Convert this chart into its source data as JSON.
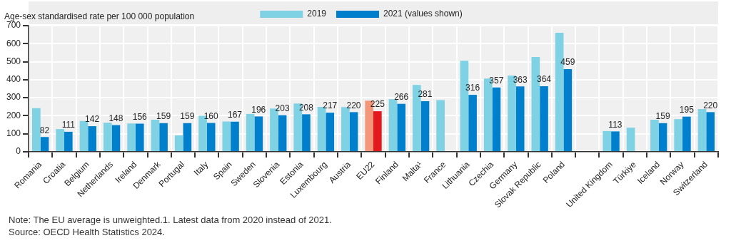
{
  "chart_data": {
    "type": "bar",
    "ylabel": "Age-sex standardised rate per 100 000 population",
    "categories": [
      "Romania",
      "Croatia",
      "Belgium",
      "Netherlands",
      "Ireland",
      "Denmark",
      "Portugal",
      "Italy",
      "Spain",
      "Sweden",
      "Slovenia",
      "Estonia",
      "Luxembourg",
      "Austria",
      "EU22",
      "Finland",
      "Malta¹",
      "France",
      "Lithuania",
      "Czechia",
      "Germany",
      "Slovak Republic",
      "Poland",
      null,
      "United Kingdom",
      "Türkiye",
      "Iceland",
      "Norway",
      "Switzerland"
    ],
    "series": [
      {
        "name": "2019",
        "color": "#7fd1e4",
        "colors": [
          "#7fd1e4",
          "#7fd1e4",
          "#7fd1e4",
          "#7fd1e4",
          "#7fd1e4",
          "#7fd1e4",
          "#7fd1e4",
          "#7fd1e4",
          "#7fd1e4",
          "#7fd1e4",
          "#7fd1e4",
          "#7fd1e4",
          "#7fd1e4",
          "#7fd1e4",
          "#f4967a",
          "#7fd1e4",
          "#7fd1e4",
          "#7fd1e4",
          "#7fd1e4",
          "#7fd1e4",
          "#7fd1e4",
          "#7fd1e4",
          "#7fd1e4",
          "#7fd1e4",
          "#7fd1e4",
          "#7fd1e4",
          "#7fd1e4",
          "#7fd1e4",
          "#7fd1e4"
        ],
        "values": [
          242,
          126,
          171,
          161,
          157,
          178,
          91,
          200,
          168,
          210,
          240,
          268,
          249,
          248,
          284,
          292,
          371,
          287,
          505,
          406,
          423,
          526,
          660,
          null,
          115,
          134,
          178,
          181,
          237
        ]
      },
      {
        "name": "2021 (values shown)",
        "color": "#0080cc",
        "colors": [
          "#0080cc",
          "#0080cc",
          "#0080cc",
          "#0080cc",
          "#0080cc",
          "#0080cc",
          "#0080cc",
          "#0080cc",
          "#0080cc",
          "#0080cc",
          "#0080cc",
          "#0080cc",
          "#0080cc",
          "#0080cc",
          "#e3191e",
          "#0080cc",
          "#0080cc",
          "#0080cc",
          "#0080cc",
          "#0080cc",
          "#0080cc",
          "#0080cc",
          "#0080cc",
          "#0080cc",
          "#0080cc",
          "#0080cc",
          "#0080cc",
          "#0080cc",
          "#0080cc"
        ],
        "values": [
          82,
          111,
          142,
          148,
          156,
          159,
          159,
          160,
          167,
          196,
          203,
          208,
          217,
          220,
          225,
          266,
          281,
          null,
          316,
          357,
          363,
          364,
          459,
          null,
          113,
          null,
          159,
          195,
          220
        ],
        "value_labels": [
          "82",
          "111",
          "142",
          "148",
          "156",
          "159",
          "159",
          "160",
          "167",
          "196",
          "203",
          "208",
          "217",
          "220",
          "225",
          "266",
          "281",
          null,
          "316",
          "357",
          "363",
          "364",
          "459",
          null,
          "113",
          null,
          "159",
          "195",
          "220"
        ]
      }
    ],
    "ylim": [
      0,
      700
    ],
    "yticks": [
      0,
      100,
      200,
      300,
      400,
      500,
      600,
      700
    ],
    "grid": true,
    "legend": "top",
    "annotations": [
      "Note: The EU average is unweighted.1. Latest data from 2020 instead of 2021.",
      "Source: OECD Health Statistics 2024."
    ]
  }
}
